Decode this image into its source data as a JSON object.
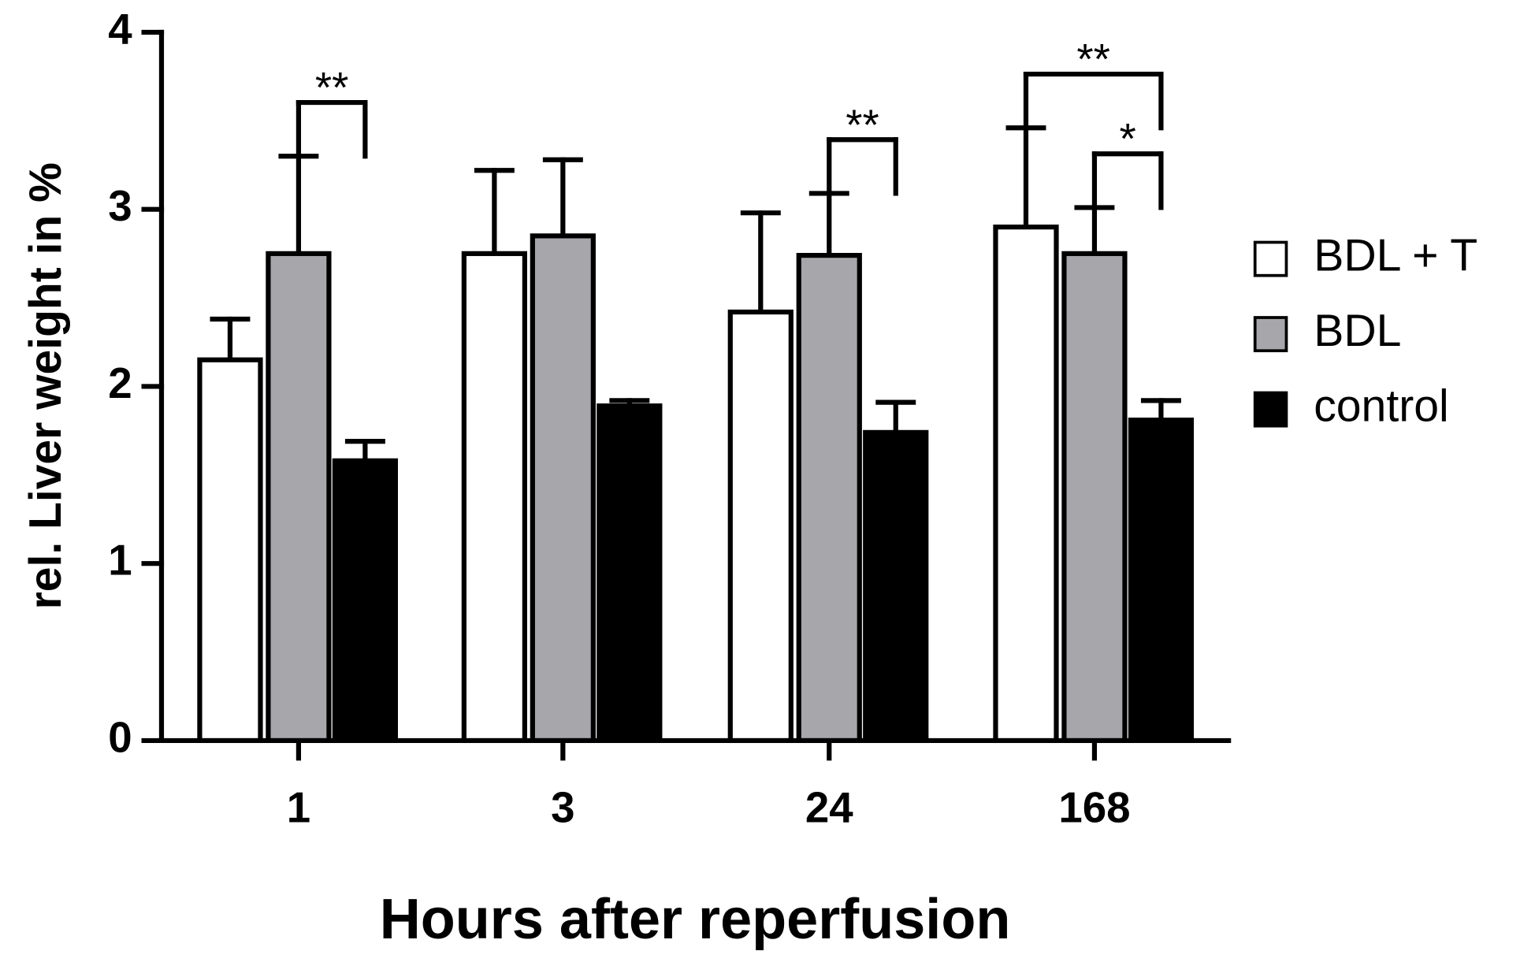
{
  "chart_data": {
    "type": "bar",
    "x_label": "Hours after reperfusion",
    "y_label": "rel. Liver weight in %",
    "categories": [
      "1",
      "3",
      "24",
      "168"
    ],
    "series": [
      {
        "name": "BDL + T",
        "color": "#ffffff",
        "values": [
          2.15,
          2.75,
          2.42,
          2.9
        ],
        "errors": [
          0.23,
          0.47,
          0.56,
          0.56
        ]
      },
      {
        "name": "BDL",
        "color": "#a7a6ab",
        "values": [
          2.75,
          2.85,
          2.74,
          2.75
        ],
        "errors": [
          0.55,
          0.43,
          0.35,
          0.26
        ]
      },
      {
        "name": "control",
        "color": "#000000",
        "values": [
          1.58,
          1.89,
          1.74,
          1.81
        ],
        "errors": [
          0.11,
          0.03,
          0.17,
          0.11
        ]
      }
    ],
    "ylim": [
      0,
      4
    ],
    "yticks": [
      0,
      1,
      2,
      3,
      4
    ],
    "legend": "right",
    "annotations": [
      {
        "text": "**",
        "category": "1",
        "between": [
          "BDL",
          "control"
        ]
      },
      {
        "text": "**",
        "category": "24",
        "between": [
          "BDL",
          "control"
        ]
      },
      {
        "text": "**",
        "category": "168",
        "between": [
          "BDL + T",
          "control"
        ]
      },
      {
        "text": "*",
        "category": "168",
        "between": [
          "BDL",
          "control"
        ]
      }
    ]
  }
}
